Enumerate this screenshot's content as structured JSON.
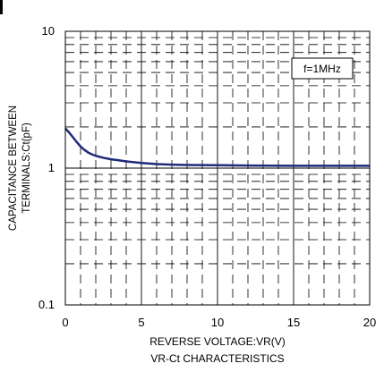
{
  "chart_data": {
    "type": "line",
    "title": "VR-Ct CHARACTERISTICS",
    "xlabel": "REVERSE VOLTAGE:VR(V)",
    "ylabel_line1": "CAPACITANCE BETWEEN",
    "ylabel_line2": "TERMINALS:Ct(pF)",
    "xlim": [
      0,
      20
    ],
    "ylim": [
      0.1,
      10
    ],
    "yscale": "log",
    "x_ticks": [
      0,
      5,
      10,
      15,
      20
    ],
    "x_tick_labels": [
      "0",
      "5",
      "10",
      "15",
      "20"
    ],
    "y_ticks": [
      0.1,
      1,
      10
    ],
    "y_tick_labels": [
      "0.1",
      "1",
      "10"
    ],
    "grid": true,
    "annotation": "f=1MHz",
    "line_color": "#1f2a7a",
    "series": [
      {
        "x": [
          0,
          0.25,
          0.5,
          0.75,
          1,
          1.25,
          1.5,
          1.75,
          2,
          2.5,
          3,
          3.5,
          4,
          5,
          6,
          7,
          8,
          10,
          12,
          15,
          18,
          20
        ],
        "values": [
          1.95,
          1.82,
          1.68,
          1.55,
          1.44,
          1.36,
          1.3,
          1.26,
          1.23,
          1.19,
          1.16,
          1.14,
          1.12,
          1.09,
          1.07,
          1.06,
          1.055,
          1.05,
          1.045,
          1.04,
          1.04,
          1.04
        ]
      }
    ]
  }
}
